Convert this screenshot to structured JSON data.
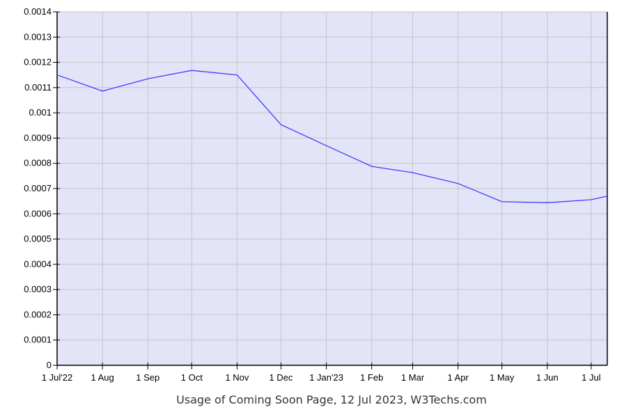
{
  "chart_data": {
    "type": "line",
    "title": "Usage of Coming Soon Page, 12 Jul 2023, W3Techs.com",
    "xlabel": "",
    "ylabel": "",
    "ylim": [
      0,
      0.0014
    ],
    "yticks": [
      "0",
      "0.0001",
      "0.0002",
      "0.0003",
      "0.0004",
      "0.0005",
      "0.0006",
      "0.0007",
      "0.0008",
      "0.0009",
      "0.001",
      "0.0011",
      "0.0012",
      "0.0013",
      "0.0014"
    ],
    "xlim": [
      "2022-07-01",
      "2023-07-12"
    ],
    "xticks": [
      {
        "date": "2022-07-01",
        "label": "1 Jul'22"
      },
      {
        "date": "2022-08-01",
        "label": "1 Aug"
      },
      {
        "date": "2022-09-01",
        "label": "1 Sep"
      },
      {
        "date": "2022-10-01",
        "label": "1 Oct"
      },
      {
        "date": "2022-11-01",
        "label": "1 Nov"
      },
      {
        "date": "2022-12-01",
        "label": "1 Dec"
      },
      {
        "date": "2023-01-01",
        "label": "1 Jan'23"
      },
      {
        "date": "2023-02-01",
        "label": "1 Feb"
      },
      {
        "date": "2023-03-01",
        "label": "1 Mar"
      },
      {
        "date": "2023-04-01",
        "label": "1 Apr"
      },
      {
        "date": "2023-05-01",
        "label": "1 May"
      },
      {
        "date": "2023-06-01",
        "label": "1 Jun"
      },
      {
        "date": "2023-07-01",
        "label": "1 Jul"
      }
    ],
    "grid": true,
    "series": [
      {
        "x": [
          "2022-07-01",
          "2022-08-01",
          "2022-09-01",
          "2022-10-01",
          "2022-11-01",
          "2022-12-01",
          "2023-01-01",
          "2023-02-01",
          "2023-03-01",
          "2023-04-01",
          "2023-05-01",
          "2023-06-01",
          "2023-07-01",
          "2023-07-12"
        ],
        "values": [
          0.00115,
          0.001086,
          0.001135,
          0.001168,
          0.00115,
          0.000953,
          0.00087,
          0.000788,
          0.000763,
          0.00072,
          0.000648,
          0.000644,
          0.000656,
          0.00067
        ]
      }
    ],
    "colors": {
      "plot_bg": "#e4e4f8",
      "line": "#3c3cff",
      "grid": "#c4c4c4"
    }
  }
}
